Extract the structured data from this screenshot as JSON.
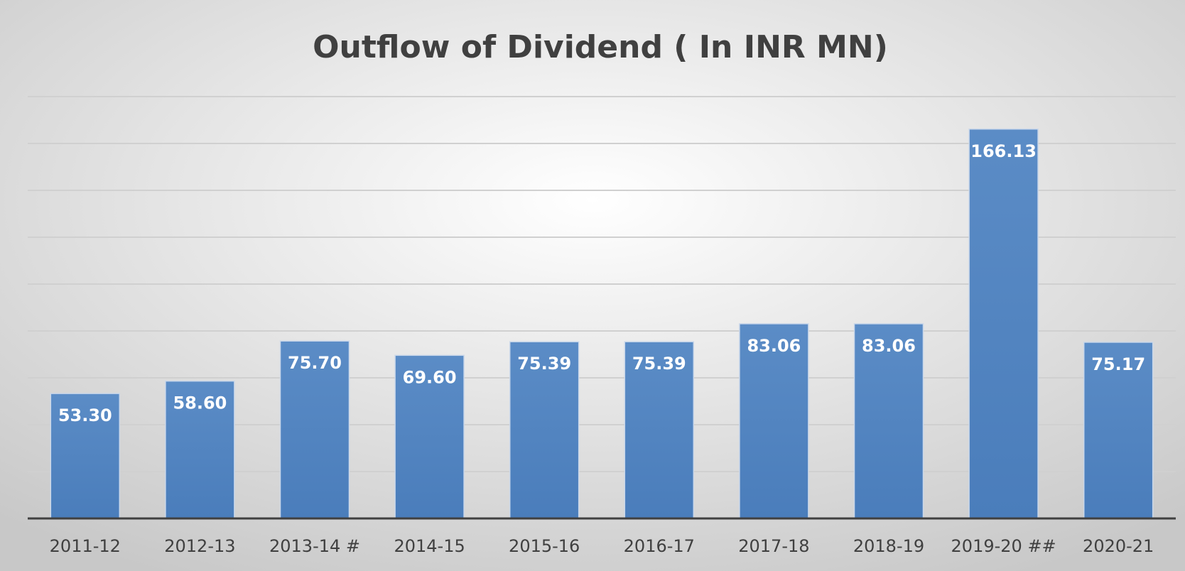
{
  "chart_data": {
    "type": "bar",
    "title": "Outflow of Dividend ( In INR MN)",
    "categories": [
      "2011-12",
      "2012-13",
      "2013-14 #",
      "2014-15",
      "2015-16",
      "2016-17",
      "2017-18",
      "2018-19",
      "2019-20 ##",
      "2020-21"
    ],
    "values": [
      53.3,
      58.6,
      75.7,
      69.6,
      75.39,
      75.39,
      83.06,
      83.06,
      166.13,
      75.17
    ],
    "value_labels": [
      "53.30",
      "58.60",
      "75.70",
      "69.60",
      "75.39",
      "75.39",
      "83.06",
      "83.06",
      "166.13",
      "75.17"
    ],
    "color": "#4f81bd",
    "ylim": [
      0,
      180
    ],
    "yticks": [
      0,
      20,
      40,
      60,
      80,
      100,
      120,
      140,
      160,
      180
    ],
    "grid": true
  }
}
